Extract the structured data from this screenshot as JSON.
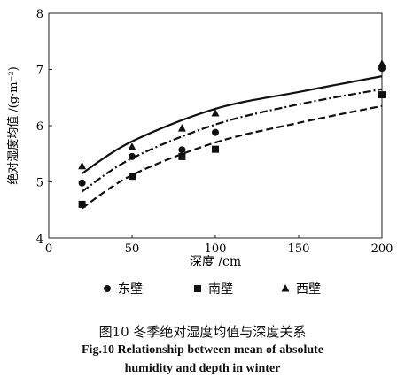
{
  "chart_data": {
    "type": "scatter",
    "xlabel": "深度 /cm",
    "ylabel": "绝对湿度均值 /(g·m⁻³)",
    "xlim": [
      0,
      200
    ],
    "ylim": [
      4,
      8
    ],
    "x_ticks": [
      0,
      50,
      100,
      150,
      200
    ],
    "y_ticks": [
      4,
      5,
      6,
      7,
      8
    ],
    "grid": false,
    "legend_position": "bottom",
    "series": [
      {
        "name": "东壁",
        "marker": "circle",
        "points": [
          [
            20,
            4.98
          ],
          [
            50,
            5.45
          ],
          [
            80,
            5.57
          ],
          [
            100,
            5.88
          ],
          [
            200,
            7.02
          ]
        ],
        "fit_line": "dash-dot",
        "fit_curve": [
          [
            20,
            4.83
          ],
          [
            50,
            5.42
          ],
          [
            100,
            6.02
          ],
          [
            150,
            6.38
          ],
          [
            200,
            6.65
          ]
        ]
      },
      {
        "name": "南壁",
        "marker": "square",
        "points": [
          [
            20,
            4.6
          ],
          [
            50,
            5.1
          ],
          [
            80,
            5.45
          ],
          [
            100,
            5.58
          ],
          [
            200,
            6.55
          ]
        ],
        "fit_line": "dashed",
        "fit_curve": [
          [
            20,
            4.53
          ],
          [
            50,
            5.12
          ],
          [
            100,
            5.7
          ],
          [
            150,
            6.05
          ],
          [
            200,
            6.35
          ]
        ]
      },
      {
        "name": "西壁",
        "marker": "triangle",
        "points": [
          [
            20,
            5.28
          ],
          [
            50,
            5.62
          ],
          [
            80,
            5.95
          ],
          [
            100,
            6.22
          ],
          [
            200,
            7.1
          ]
        ],
        "fit_line": "solid",
        "fit_curve": [
          [
            20,
            5.15
          ],
          [
            50,
            5.72
          ],
          [
            100,
            6.3
          ],
          [
            150,
            6.6
          ],
          [
            200,
            6.88
          ]
        ]
      }
    ]
  },
  "caption": {
    "cn": "图10    冬季绝对湿度均值与深度关系",
    "en_line1": "Fig.10    Relationship between mean of absolute",
    "en_line2": "humidity and depth in winter"
  }
}
